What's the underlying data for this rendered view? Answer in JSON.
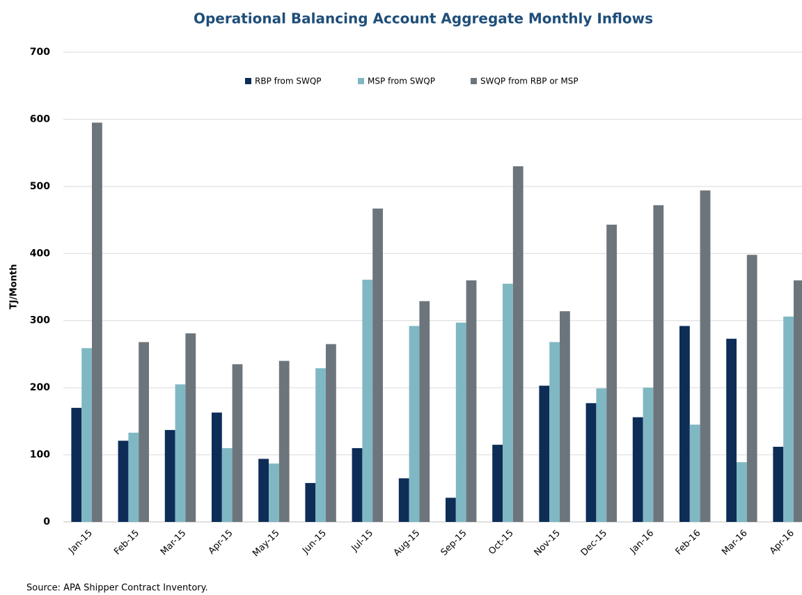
{
  "chart_data": {
    "type": "bar",
    "title": "Operational Balancing Account Aggregate Monthly Inflows",
    "ylabel": "TJ/Month",
    "source": "Source:  APA Shipper Contract Inventory.",
    "categories": [
      "Jan-15",
      "Feb-15",
      "Mar-15",
      "Apr-15",
      "May-15",
      "Jun-15",
      "Jul-15",
      "Aug-15",
      "Sep-15",
      "Oct-15",
      "Nov-15",
      "Dec-15",
      "Jan-16",
      "Feb-16",
      "Mar-16",
      "Apr-16"
    ],
    "series": [
      {
        "name": "RBP from SWQP",
        "color": "#0d2d57",
        "values": [
          170,
          121,
          137,
          163,
          94,
          58,
          110,
          65,
          36,
          115,
          203,
          177,
          156,
          292,
          273,
          112
        ]
      },
      {
        "name": "MSP from SWQP",
        "color": "#7fb8c3",
        "values": [
          259,
          133,
          205,
          110,
          87,
          229,
          361,
          292,
          297,
          355,
          268,
          199,
          200,
          145,
          89,
          306
        ]
      },
      {
        "name": "SWQP from RBP or MSP",
        "color": "#6d757c",
        "values": [
          595,
          268,
          281,
          235,
          240,
          265,
          467,
          329,
          360,
          530,
          314,
          443,
          472,
          494,
          398,
          360
        ]
      }
    ],
    "ylim": [
      0,
      700
    ],
    "yticks": [
      0,
      100,
      200,
      300,
      400,
      500,
      600,
      700
    ],
    "grid": true,
    "legend": "top"
  }
}
